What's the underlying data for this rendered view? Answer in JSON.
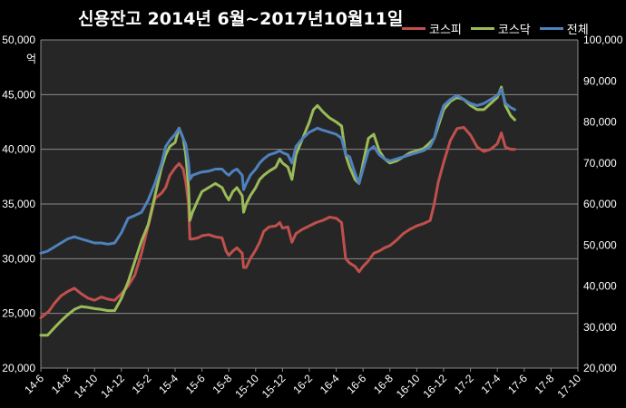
{
  "chart_data": {
    "type": "line",
    "title": "신용잔고 2014년 6월~2017년10월11일",
    "unit_left": "억",
    "ylim_left": [
      20000,
      50000
    ],
    "ylim_right": [
      20000,
      100000
    ],
    "yticks_left": [
      "20,000",
      "25,000",
      "30,000",
      "35,000",
      "40,000",
      "45,000",
      "50,000"
    ],
    "yticks_right": [
      "20,000",
      "30,000",
      "40,000",
      "50,000",
      "60,000",
      "70,000",
      "80,000",
      "90,000",
      "100,000"
    ],
    "xticks": [
      "14-6",
      "14-8",
      "14-10",
      "14-12",
      "15-2",
      "15-4",
      "15-6",
      "15-8",
      "15-10",
      "15-12",
      "16-2",
      "16-4",
      "16-6",
      "16-8",
      "16-10",
      "16-12",
      "17-2",
      "17-4",
      "17-6",
      "17-8",
      "17-10"
    ],
    "grid": true,
    "legend_position": "top-right",
    "series": [
      {
        "name": "코스피",
        "axis": "left",
        "color": "#c0504d",
        "points": [
          [
            0,
            24600
          ],
          [
            0.3,
            24900
          ],
          [
            0.6,
            25200
          ],
          [
            1.0,
            25900
          ],
          [
            1.5,
            26600
          ],
          [
            2.0,
            27000
          ],
          [
            2.5,
            27300
          ],
          [
            3.0,
            26800
          ],
          [
            3.5,
            26400
          ],
          [
            4.0,
            26200
          ],
          [
            4.5,
            26500
          ],
          [
            5.0,
            26300
          ],
          [
            5.5,
            26200
          ],
          [
            6.0,
            26800
          ],
          [
            6.5,
            27500
          ],
          [
            7.0,
            28500
          ],
          [
            7.5,
            30500
          ],
          [
            8.0,
            33000
          ],
          [
            8.5,
            35500
          ],
          [
            9.0,
            36000
          ],
          [
            9.3,
            36500
          ],
          [
            9.6,
            37600
          ],
          [
            10.0,
            38300
          ],
          [
            10.3,
            38700
          ],
          [
            10.6,
            38200
          ],
          [
            10.8,
            37000
          ],
          [
            11.0,
            35000
          ],
          [
            11.1,
            31800
          ],
          [
            11.3,
            31800
          ],
          [
            11.7,
            31900
          ],
          [
            12.0,
            32100
          ],
          [
            12.5,
            32200
          ],
          [
            13.0,
            32000
          ],
          [
            13.5,
            31900
          ],
          [
            13.8,
            30700
          ],
          [
            14.0,
            30300
          ],
          [
            14.3,
            30700
          ],
          [
            14.6,
            31000
          ],
          [
            15.0,
            30500
          ],
          [
            15.1,
            29200
          ],
          [
            15.3,
            29200
          ],
          [
            15.6,
            30000
          ],
          [
            16.0,
            30800
          ],
          [
            16.3,
            31500
          ],
          [
            16.6,
            32500
          ],
          [
            17.0,
            32900
          ],
          [
            17.5,
            33000
          ],
          [
            17.8,
            33300
          ],
          [
            18.0,
            32800
          ],
          [
            18.4,
            32900
          ],
          [
            18.7,
            31500
          ],
          [
            19.0,
            32300
          ],
          [
            19.5,
            32700
          ],
          [
            20.0,
            33000
          ],
          [
            20.5,
            33300
          ],
          [
            21.0,
            33500
          ],
          [
            21.5,
            33800
          ],
          [
            22.0,
            33700
          ],
          [
            22.4,
            33300
          ],
          [
            22.7,
            30000
          ],
          [
            23.0,
            29600
          ],
          [
            23.4,
            29300
          ],
          [
            23.7,
            28800
          ],
          [
            24.0,
            29300
          ],
          [
            24.4,
            29800
          ],
          [
            24.8,
            30500
          ],
          [
            25.2,
            30700
          ],
          [
            25.6,
            31000
          ],
          [
            26.0,
            31200
          ],
          [
            26.5,
            31700
          ],
          [
            27.0,
            32300
          ],
          [
            27.5,
            32700
          ],
          [
            28.0,
            33000
          ],
          [
            28.5,
            33200
          ],
          [
            29.0,
            33500
          ],
          [
            29.3,
            35000
          ],
          [
            29.6,
            37000
          ],
          [
            30.0,
            38800
          ],
          [
            30.5,
            40800
          ],
          [
            31.0,
            41900
          ],
          [
            31.5,
            42000
          ],
          [
            32.0,
            41300
          ],
          [
            32.5,
            40200
          ],
          [
            33.0,
            39800
          ],
          [
            33.5,
            40000
          ],
          [
            34.0,
            40500
          ],
          [
            34.3,
            41500
          ],
          [
            34.6,
            40200
          ],
          [
            35.0,
            40000
          ],
          [
            35.3,
            40000
          ]
        ]
      },
      {
        "name": "코스닥",
        "axis": "right",
        "color": "#9bbb59",
        "points": [
          [
            0,
            28000
          ],
          [
            0.5,
            28000
          ],
          [
            1.0,
            29800
          ],
          [
            1.5,
            31500
          ],
          [
            2.0,
            33000
          ],
          [
            2.5,
            34300
          ],
          [
            3.0,
            35000
          ],
          [
            3.5,
            34800
          ],
          [
            4.0,
            34500
          ],
          [
            4.5,
            34300
          ],
          [
            5.0,
            34000
          ],
          [
            5.5,
            34000
          ],
          [
            6.0,
            37000
          ],
          [
            6.5,
            41000
          ],
          [
            7.0,
            46000
          ],
          [
            7.5,
            51000
          ],
          [
            8.0,
            55000
          ],
          [
            8.5,
            62000
          ],
          [
            9.0,
            69000
          ],
          [
            9.3,
            72000
          ],
          [
            9.6,
            74000
          ],
          [
            10.0,
            75000
          ],
          [
            10.3,
            78500
          ],
          [
            10.6,
            76000
          ],
          [
            10.8,
            72000
          ],
          [
            11.0,
            64000
          ],
          [
            11.1,
            56000
          ],
          [
            11.3,
            58000
          ],
          [
            11.7,
            61000
          ],
          [
            12.0,
            63000
          ],
          [
            12.5,
            64000
          ],
          [
            13.0,
            65000
          ],
          [
            13.5,
            64000
          ],
          [
            13.8,
            62000
          ],
          [
            14.0,
            61000
          ],
          [
            14.3,
            63000
          ],
          [
            14.6,
            64000
          ],
          [
            15.0,
            62000
          ],
          [
            15.1,
            58000
          ],
          [
            15.3,
            60000
          ],
          [
            15.6,
            62000
          ],
          [
            16.0,
            64000
          ],
          [
            16.3,
            66000
          ],
          [
            16.6,
            67000
          ],
          [
            17.0,
            68000
          ],
          [
            17.5,
            69000
          ],
          [
            17.8,
            71000
          ],
          [
            18.0,
            70000
          ],
          [
            18.4,
            69000
          ],
          [
            18.7,
            66000
          ],
          [
            19.0,
            72000
          ],
          [
            19.5,
            76000
          ],
          [
            20.0,
            80000
          ],
          [
            20.3,
            83000
          ],
          [
            20.6,
            84000
          ],
          [
            21.0,
            82500
          ],
          [
            21.5,
            81000
          ],
          [
            22.0,
            80000
          ],
          [
            22.4,
            79000
          ],
          [
            22.7,
            72000
          ],
          [
            23.0,
            69000
          ],
          [
            23.4,
            66000
          ],
          [
            23.7,
            65000
          ],
          [
            24.0,
            70000
          ],
          [
            24.4,
            76000
          ],
          [
            24.8,
            77000
          ],
          [
            25.2,
            73000
          ],
          [
            25.6,
            71000
          ],
          [
            26.0,
            70000
          ],
          [
            26.5,
            70500
          ],
          [
            27.0,
            71500
          ],
          [
            27.5,
            72500
          ],
          [
            28.0,
            73000
          ],
          [
            28.5,
            73500
          ],
          [
            29.0,
            75000
          ],
          [
            29.3,
            76000
          ],
          [
            29.6,
            79000
          ],
          [
            30.0,
            83000
          ],
          [
            30.5,
            85000
          ],
          [
            31.0,
            86000
          ],
          [
            31.5,
            85500
          ],
          [
            32.0,
            84000
          ],
          [
            32.5,
            83000
          ],
          [
            33.0,
            83000
          ],
          [
            33.5,
            84500
          ],
          [
            34.0,
            86000
          ],
          [
            34.3,
            88500
          ],
          [
            34.6,
            84000
          ],
          [
            35.0,
            81500
          ],
          [
            35.3,
            80500
          ]
        ]
      },
      {
        "name": "전체",
        "axis": "right",
        "color": "#4f81bd",
        "points": [
          [
            0,
            48000
          ],
          [
            0.5,
            48500
          ],
          [
            1.0,
            49500
          ],
          [
            1.5,
            50500
          ],
          [
            2.0,
            51500
          ],
          [
            2.5,
            52000
          ],
          [
            3.0,
            51500
          ],
          [
            3.5,
            51000
          ],
          [
            4.0,
            50500
          ],
          [
            4.5,
            50500
          ],
          [
            5.0,
            50200
          ],
          [
            5.5,
            50500
          ],
          [
            6.0,
            53000
          ],
          [
            6.5,
            56500
          ],
          [
            7.0,
            57200
          ],
          [
            7.5,
            58000
          ],
          [
            8.0,
            61000
          ],
          [
            8.5,
            65000
          ],
          [
            9.0,
            70000
          ],
          [
            9.3,
            74000
          ],
          [
            9.6,
            75500
          ],
          [
            10.0,
            77000
          ],
          [
            10.3,
            78500
          ],
          [
            10.6,
            76000
          ],
          [
            10.8,
            74500
          ],
          [
            11.0,
            70000
          ],
          [
            11.1,
            66000
          ],
          [
            11.3,
            67000
          ],
          [
            11.7,
            67500
          ],
          [
            12.0,
            67800
          ],
          [
            12.5,
            68000
          ],
          [
            13.0,
            68500
          ],
          [
            13.5,
            68500
          ],
          [
            13.8,
            67500
          ],
          [
            14.0,
            67000
          ],
          [
            14.3,
            68000
          ],
          [
            14.6,
            68500
          ],
          [
            15.0,
            67000
          ],
          [
            15.1,
            63500
          ],
          [
            15.3,
            65000
          ],
          [
            15.6,
            67000
          ],
          [
            16.0,
            68500
          ],
          [
            16.3,
            70000
          ],
          [
            16.6,
            71000
          ],
          [
            17.0,
            72000
          ],
          [
            17.5,
            72500
          ],
          [
            17.8,
            73000
          ],
          [
            18.0,
            72500
          ],
          [
            18.4,
            72000
          ],
          [
            18.7,
            70000
          ],
          [
            19.0,
            74000
          ],
          [
            19.5,
            76000
          ],
          [
            20.0,
            77500
          ],
          [
            20.3,
            78000
          ],
          [
            20.6,
            78500
          ],
          [
            21.0,
            78000
          ],
          [
            21.5,
            77500
          ],
          [
            22.0,
            77000
          ],
          [
            22.4,
            76000
          ],
          [
            22.7,
            72000
          ],
          [
            23.0,
            71500
          ],
          [
            23.4,
            67500
          ],
          [
            23.7,
            65000
          ],
          [
            24.0,
            68500
          ],
          [
            24.4,
            73000
          ],
          [
            24.8,
            74000
          ],
          [
            25.2,
            72000
          ],
          [
            25.6,
            71000
          ],
          [
            26.0,
            70500
          ],
          [
            26.5,
            71000
          ],
          [
            27.0,
            71500
          ],
          [
            27.5,
            72000
          ],
          [
            28.0,
            72500
          ],
          [
            28.5,
            73000
          ],
          [
            29.0,
            74000
          ],
          [
            29.3,
            76000
          ],
          [
            29.6,
            80000
          ],
          [
            30.0,
            84000
          ],
          [
            30.5,
            85500
          ],
          [
            31.0,
            86500
          ],
          [
            31.5,
            85500
          ],
          [
            32.0,
            84500
          ],
          [
            32.5,
            84000
          ],
          [
            33.0,
            84500
          ],
          [
            33.5,
            85500
          ],
          [
            34.0,
            86500
          ],
          [
            34.3,
            88000
          ],
          [
            34.6,
            84500
          ],
          [
            35.0,
            83500
          ],
          [
            35.3,
            83000
          ]
        ]
      }
    ]
  }
}
